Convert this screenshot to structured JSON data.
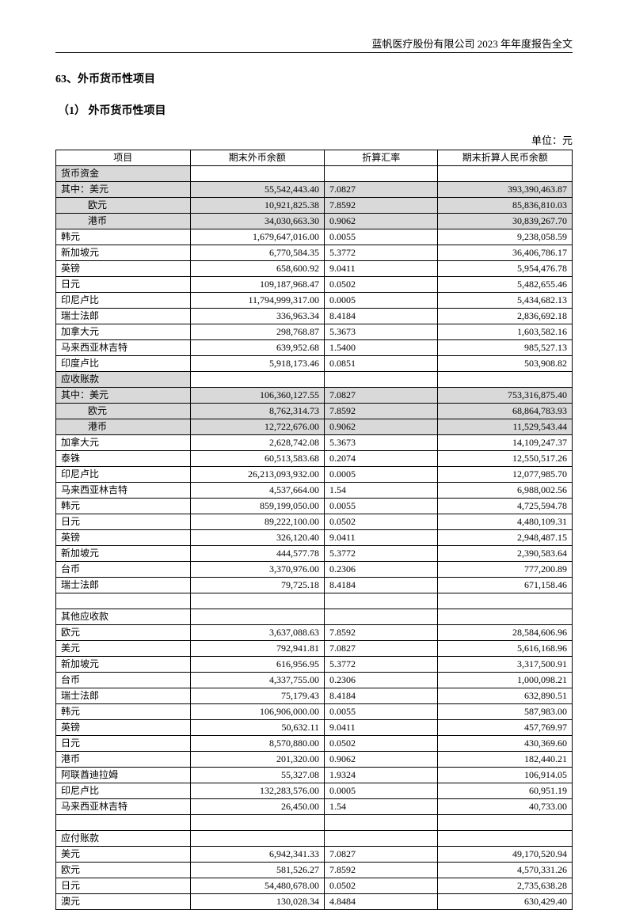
{
  "header": "蓝帆医疗股份有限公司 2023 年年度报告全文",
  "section_number": "63、",
  "section_title": "外币货币性项目",
  "subsection_number": "（1）",
  "subsection_title": " 外币货币性项目",
  "unit": "单位：元",
  "columns": [
    "项目",
    "期末外币余额",
    "折算汇率",
    "期末折算人民币余额"
  ],
  "groups": [
    {
      "header": "货币资金",
      "subrows": [
        {
          "label": "其中：美元",
          "shade": true,
          "indent": false,
          "fc": "55,542,443.40",
          "rate": "7.0827",
          "rmb": "393,390,463.87"
        },
        {
          "label": "欧元",
          "shade": true,
          "indent": true,
          "fc": "10,921,825.38",
          "rate": "7.8592",
          "rmb": "85,836,810.03"
        },
        {
          "label": "港币",
          "shade": true,
          "indent": true,
          "fc": "34,030,663.30",
          "rate": "0.9062",
          "rmb": "30,839,267.70"
        },
        {
          "label": "韩元",
          "shade": false,
          "fc": "1,679,647,016.00",
          "rate": "0.0055",
          "rmb": "9,238,058.59"
        },
        {
          "label": "新加坡元",
          "shade": false,
          "fc": "6,770,584.35",
          "rate": "5.3772",
          "rmb": "36,406,786.17"
        },
        {
          "label": "英镑",
          "shade": false,
          "fc": "658,600.92",
          "rate": "9.0411",
          "rmb": "5,954,476.78"
        },
        {
          "label": "日元",
          "shade": false,
          "fc": "109,187,968.47",
          "rate": "0.0502",
          "rmb": "5,482,655.46"
        },
        {
          "label": "印尼卢比",
          "shade": false,
          "fc": "11,794,999,317.00",
          "rate": "0.0005",
          "rmb": "5,434,682.13"
        },
        {
          "label": "瑞士法郎",
          "shade": false,
          "fc": "336,963.34",
          "rate": "8.4184",
          "rmb": "2,836,692.18"
        },
        {
          "label": "加拿大元",
          "shade": false,
          "fc": "298,768.87",
          "rate": "5.3673",
          "rmb": "1,603,582.16"
        },
        {
          "label": "马来西亚林吉特",
          "shade": false,
          "fc": "639,952.68",
          "rate": "1.5400",
          "rmb": "985,527.13"
        },
        {
          "label": "印度卢比",
          "shade": false,
          "fc": "5,918,173.46",
          "rate": "0.0851",
          "rmb": "503,908.82"
        }
      ]
    },
    {
      "header": "应收账款",
      "subrows": [
        {
          "label": "其中：美元",
          "shade": true,
          "indent": false,
          "fc": "106,360,127.55",
          "rate": "7.0827",
          "rmb": "753,316,875.40"
        },
        {
          "label": "欧元",
          "shade": true,
          "indent": true,
          "fc": "8,762,314.73",
          "rate": "7.8592",
          "rmb": "68,864,783.93"
        },
        {
          "label": "港币",
          "shade": true,
          "indent": true,
          "fc": "12,722,676.00",
          "rate": "0.9062",
          "rmb": "11,529,543.44"
        },
        {
          "label": "加拿大元",
          "shade": false,
          "fc": "2,628,742.08",
          "rate": "5.3673",
          "rmb": "14,109,247.37"
        },
        {
          "label": "泰铢",
          "shade": false,
          "fc": "60,513,583.68",
          "rate": "0.2074",
          "rmb": "12,550,517.26"
        },
        {
          "label": "印尼卢比",
          "shade": false,
          "fc": "26,213,093,932.00",
          "rate": "0.0005",
          "rmb": "12,077,985.70"
        },
        {
          "label": "马来西亚林吉特",
          "shade": false,
          "fc": "4,537,664.00",
          "rate": "1.54",
          "rmb": "6,988,002.56"
        },
        {
          "label": "韩元",
          "shade": false,
          "fc": "859,199,050.00",
          "rate": "0.0055",
          "rmb": "4,725,594.78"
        },
        {
          "label": "日元",
          "shade": false,
          "fc": "89,222,100.00",
          "rate": "0.0502",
          "rmb": "4,480,109.31"
        },
        {
          "label": "英镑",
          "shade": false,
          "fc": "326,120.40",
          "rate": "9.0411",
          "rmb": "2,948,487.15"
        },
        {
          "label": "新加坡元",
          "shade": false,
          "fc": "444,577.78",
          "rate": "5.3772",
          "rmb": "2,390,583.64"
        },
        {
          "label": "台币",
          "shade": false,
          "fc": "3,370,976.00",
          "rate": "0.2306",
          "rmb": "777,200.89"
        },
        {
          "label": "瑞士法郎",
          "shade": false,
          "fc": "79,725.18",
          "rate": "8.4184",
          "rmb": "671,158.46"
        }
      ],
      "trailing_blank": true
    },
    {
      "header": "其他应收款",
      "no_shade_header": true,
      "subrows": [
        {
          "label": "欧元",
          "shade": false,
          "fc": "3,637,088.63",
          "rate": "7.8592",
          "rmb": "28,584,606.96"
        },
        {
          "label": "美元",
          "shade": false,
          "fc": "792,941.81",
          "rate": "7.0827",
          "rmb": "5,616,168.96"
        },
        {
          "label": "新加坡元",
          "shade": false,
          "fc": "616,956.95",
          "rate": "5.3772",
          "rmb": "3,317,500.91"
        },
        {
          "label": "台币",
          "shade": false,
          "fc": "4,337,755.00",
          "rate": "0.2306",
          "rmb": "1,000,098.21"
        },
        {
          "label": "瑞士法郎",
          "shade": false,
          "fc": "75,179.43",
          "rate": "8.4184",
          "rmb": "632,890.51"
        },
        {
          "label": "韩元",
          "shade": false,
          "fc": "106,906,000.00",
          "rate": "0.0055",
          "rmb": "587,983.00"
        },
        {
          "label": "英镑",
          "shade": false,
          "fc": "50,632.11",
          "rate": "9.0411",
          "rmb": "457,769.97"
        },
        {
          "label": "日元",
          "shade": false,
          "fc": "8,570,880.00",
          "rate": "0.0502",
          "rmb": "430,369.60"
        },
        {
          "label": "港币",
          "shade": false,
          "fc": "201,320.00",
          "rate": "0.9062",
          "rmb": "182,440.21"
        },
        {
          "label": "阿联酋迪拉姆",
          "shade": false,
          "fc": "55,327.08",
          "rate": "1.9324",
          "rmb": "106,914.05"
        },
        {
          "label": "印尼卢比",
          "shade": false,
          "fc": "132,283,576.00",
          "rate": "0.0005",
          "rmb": "60,951.19"
        },
        {
          "label": "马来西亚林吉特",
          "shade": false,
          "fc": "26,450.00",
          "rate": "1.54",
          "rmb": "40,733.00"
        }
      ],
      "trailing_blank": true
    },
    {
      "header": "应付账款",
      "no_shade_header": true,
      "subrows": [
        {
          "label": "美元",
          "shade": false,
          "fc": "6,942,341.33",
          "rate": "7.0827",
          "rmb": "49,170,520.94"
        },
        {
          "label": "欧元",
          "shade": false,
          "fc": "581,526.27",
          "rate": "7.8592",
          "rmb": "4,570,331.26"
        },
        {
          "label": "日元",
          "shade": false,
          "fc": "54,480,678.00",
          "rate": "0.0502",
          "rmb": "2,735,638.28"
        },
        {
          "label": "澳元",
          "shade": false,
          "fc": "130,028.34",
          "rate": "4.8484",
          "rmb": "630,429.40"
        }
      ]
    }
  ]
}
